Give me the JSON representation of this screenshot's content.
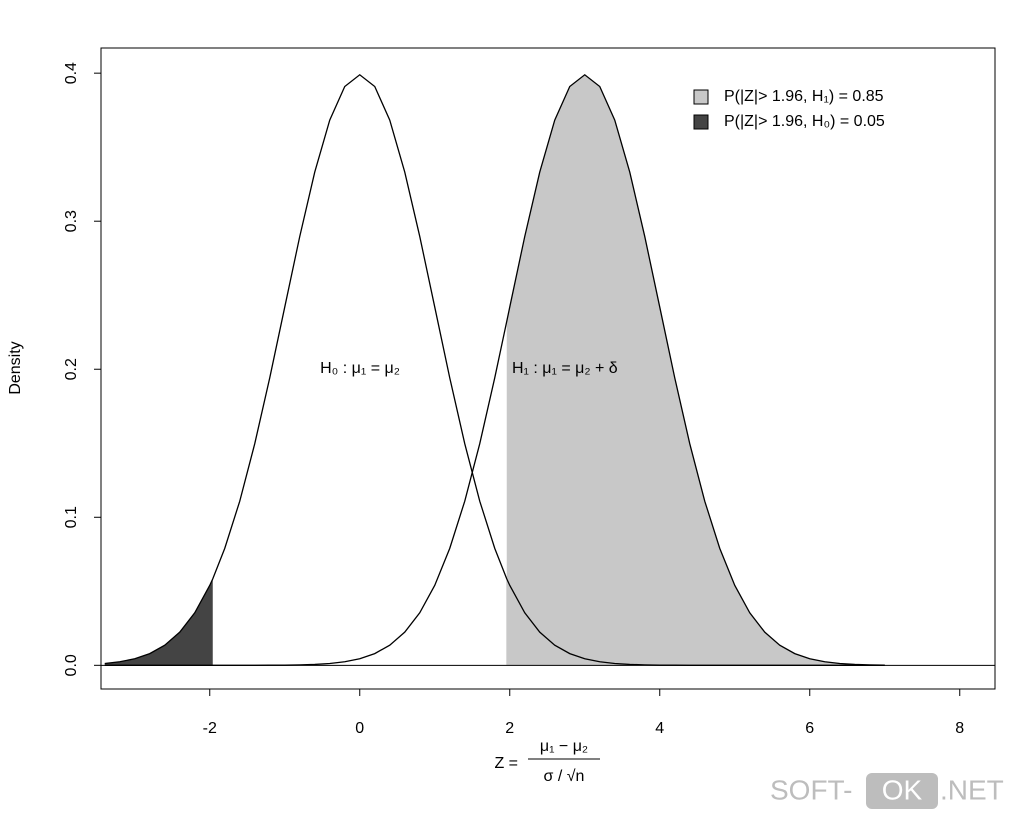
{
  "chart_data": {
    "type": "density",
    "y_label": "Density",
    "x_label": {
      "lhs": "Z =",
      "numerator": "μ₁ − μ₂",
      "denominator": "σ / √n"
    },
    "annotations": [
      "H₀ :  μ₁ = μ₂",
      "H₁ :  μ₁ = μ₂ + δ"
    ],
    "x": [
      -3.4,
      -3.2,
      -3.0,
      -2.8,
      -2.6,
      -2.4,
      -2.2,
      -2.0,
      -1.96,
      -1.8,
      -1.6,
      -1.4,
      -1.2,
      -1.0,
      -0.8,
      -0.6,
      -0.4,
      -0.2,
      0,
      0.2,
      0.4,
      0.6,
      0.8,
      1.0,
      1.2,
      1.4,
      1.6,
      1.8,
      1.96,
      2.0,
      2.2,
      2.4,
      2.6,
      2.8,
      3.0,
      3.2,
      3.4,
      3.6,
      3.8,
      4.0,
      4.2,
      4.4,
      4.6,
      4.8,
      5.0,
      5.2,
      5.4,
      5.6,
      5.8,
      6.0,
      6.2,
      6.4,
      6.6,
      6.8,
      7.0
    ],
    "series": [
      {
        "color": "#000000",
        "values": [
          0.0012,
          0.0024,
          0.0044,
          0.0079,
          0.0136,
          0.0224,
          0.0355,
          0.054,
          0.0584,
          0.079,
          0.1109,
          0.1497,
          0.1942,
          0.242,
          0.2897,
          0.3332,
          0.3683,
          0.391,
          0.3989,
          0.391,
          0.3683,
          0.3332,
          0.2897,
          0.242,
          0.1942,
          0.1497,
          0.1109,
          0.079,
          0.0584,
          0.054,
          0.0355,
          0.0224,
          0.0136,
          0.0079,
          0.0044,
          0.0024,
          0.0012,
          0.0006,
          0.0003,
          0.0001,
          0.0001,
          0,
          0,
          0,
          0,
          0,
          0,
          0,
          0,
          0,
          0,
          0,
          0,
          0,
          0
        ],
        "fill": {
          "name": "P(|Z|> 1.96, H₀) = 0.05",
          "color": "#444444",
          "ranges": [
            [
              -3.4,
              -1.96
            ],
            [
              1.96,
              7.0
            ]
          ]
        }
      },
      {
        "color": "#000000",
        "values": [
          0,
          0,
          0,
          0,
          0,
          0,
          0,
          0,
          0,
          0,
          0,
          0,
          0.0001,
          0.0001,
          0.0003,
          0.0006,
          0.0012,
          0.0024,
          0.0044,
          0.0079,
          0.0136,
          0.0224,
          0.0355,
          0.054,
          0.079,
          0.1109,
          0.1497,
          0.1942,
          0.2323,
          0.242,
          0.2897,
          0.3332,
          0.3683,
          0.391,
          0.3989,
          0.391,
          0.3683,
          0.3332,
          0.2897,
          0.242,
          0.1942,
          0.1497,
          0.1109,
          0.079,
          0.054,
          0.0355,
          0.0224,
          0.0136,
          0.0079,
          0.0044,
          0.0024,
          0.0012,
          0.0006,
          0.0003,
          0.0001
        ],
        "fill": {
          "name": "P(|Z|> 1.96, H₁) = 0.85",
          "color": "#c8c8c8",
          "ranges": [
            [
              1.96,
              7.0
            ]
          ]
        }
      }
    ],
    "legend_order": [
      1,
      0
    ],
    "legend_position": "top-right",
    "xlim": [
      -3.45,
      8.47
    ],
    "xticks": [
      -2,
      0,
      2,
      4,
      6,
      8
    ],
    "ylim": [
      -0.016,
      0.417
    ],
    "yticks": [
      {
        "value": 0,
        "label": "0.0"
      },
      0.1,
      0.2,
      0.3,
      0.4
    ],
    "watermark": {
      "left": "SOFT-",
      "box": "OK",
      "right": ".NET"
    }
  }
}
